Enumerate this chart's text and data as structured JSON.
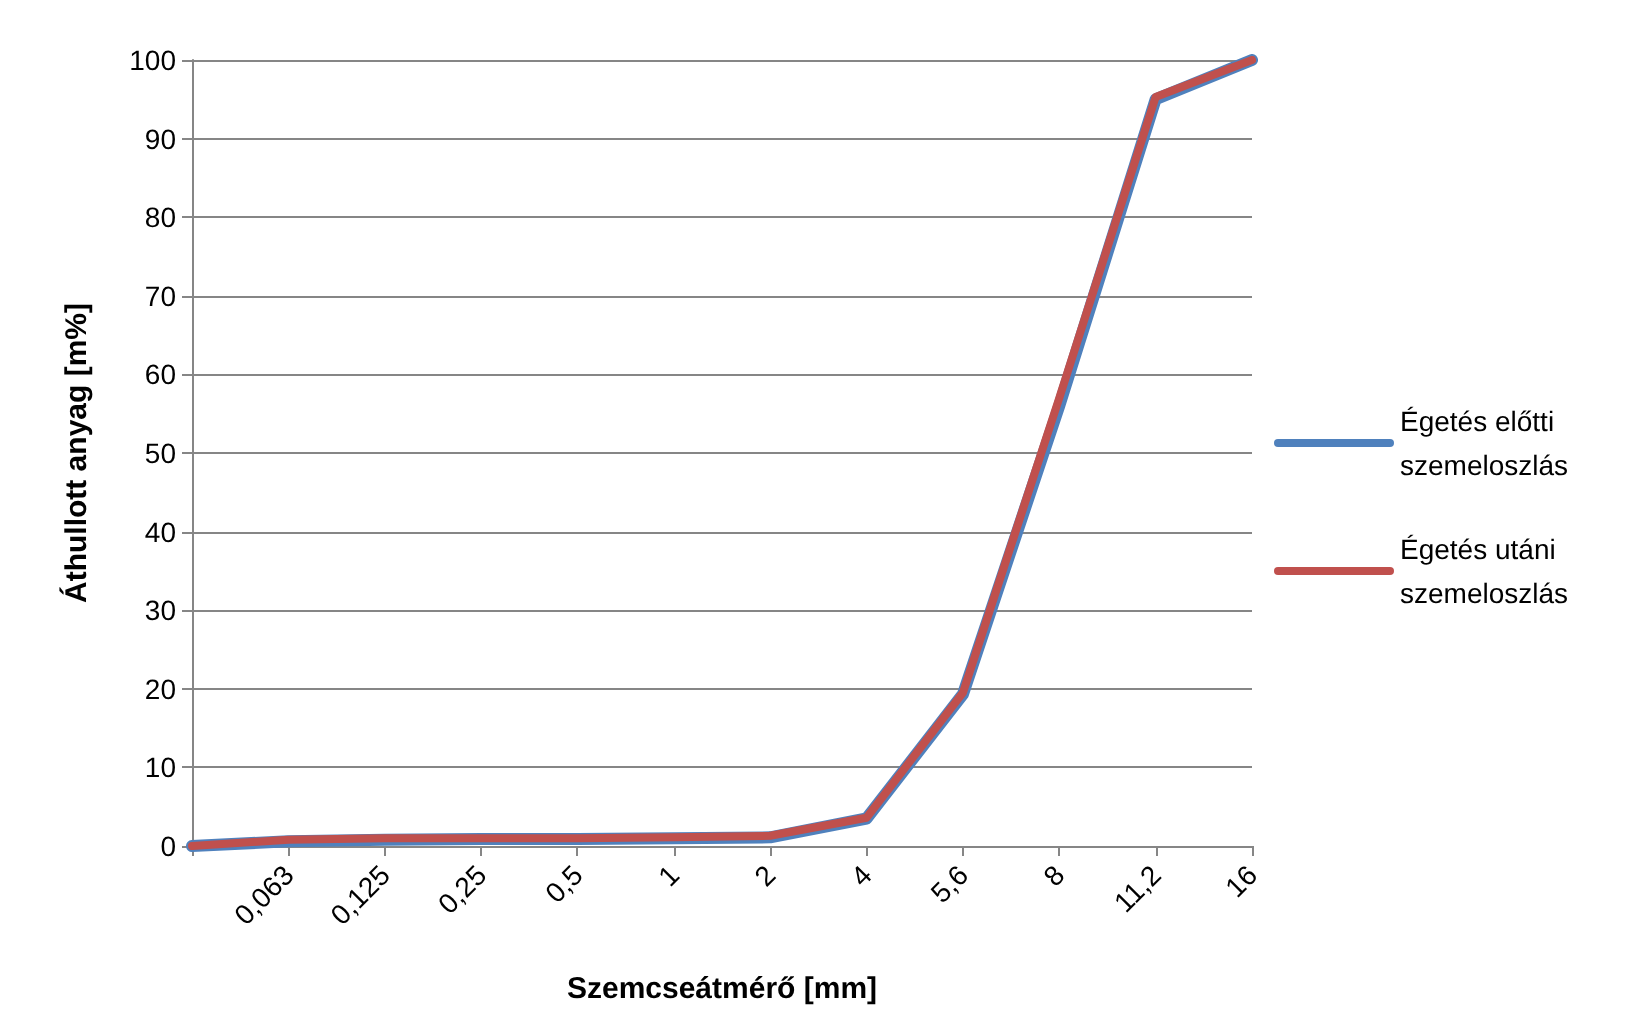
{
  "chart_data": {
    "type": "line",
    "xlabel": "Szemcseátmérő [mm]",
    "ylabel": "Áthullott anyag [m%]",
    "categories": [
      null,
      "0,063",
      "0,125",
      "0,25",
      "0,5",
      "1",
      "2",
      "4",
      "5,6",
      "8",
      "11,2",
      "16"
    ],
    "series": [
      {
        "name": "Égetés előtti szemeloszlás",
        "color": "#4f81bd",
        "values": [
          0,
          0.6,
          0.8,
          0.9,
          0.9,
          1,
          1.1,
          3.5,
          19.3,
          56,
          95,
          100
        ]
      },
      {
        "name": "Égetés utáni szemeloszlás",
        "color": "#c0504d",
        "values": [
          0,
          0.8,
          1,
          1,
          1,
          1.1,
          1.3,
          3.6,
          19.5,
          57,
          95.3,
          100
        ]
      }
    ],
    "ylim": [
      0,
      100
    ],
    "yticks": [
      0,
      10,
      20,
      30,
      40,
      50,
      60,
      70,
      80,
      90,
      100
    ],
    "grid": "y",
    "legend": "right",
    "marker": "none",
    "line_style": "solid"
  }
}
